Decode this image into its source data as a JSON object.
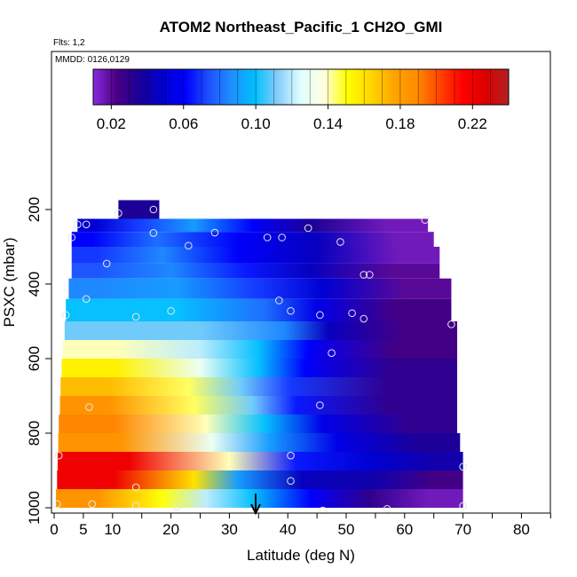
{
  "chart_data": {
    "type": "heatmap",
    "title": "ATOM2 Northeast_Pacific_1 CH2O_GMI",
    "flights_label": "Flts: 1,2",
    "dates_label": "MMDD: 0126,0129",
    "xlabel": "Latitude (deg N)",
    "ylabel": "PSXC (mbar)",
    "xlim": [
      0,
      85
    ],
    "ylim": [
      1000,
      100
    ],
    "x_ticks": [
      0,
      5,
      10,
      20,
      30,
      40,
      50,
      60,
      70,
      80
    ],
    "x_minor_ticks": [
      15,
      25,
      35,
      45,
      55,
      65,
      75,
      85
    ],
    "y_ticks": [
      200,
      400,
      600,
      800,
      1000
    ],
    "colorbar": {
      "min": 0.01,
      "max": 0.24,
      "tick_values": [
        0.02,
        0.06,
        0.1,
        0.14,
        0.18,
        0.22
      ],
      "tick_labels": [
        "0.02",
        "0.06",
        "0.10",
        "0.14",
        "0.18",
        "0.22"
      ],
      "colors": [
        "#8A2BE2",
        "#4B0082",
        "#1a0099",
        "#0000CD",
        "#0000FF",
        "#1E50FF",
        "#1E90FF",
        "#00BFFF",
        "#87CEFA",
        "#E0FFFF",
        "#FFFFE0",
        "#FFFF00",
        "#FFD700",
        "#FFA500",
        "#FF8C00",
        "#FF4500",
        "#FF0000",
        "#DC0000",
        "#B22222"
      ]
    },
    "arrow_latitude": 34.5,
    "rows": [
      {
        "p_top": 175,
        "p_bot": 225,
        "segments": [
          [
            11,
            18,
            0.035
          ]
        ]
      },
      {
        "p_top": 225,
        "p_bot": 260,
        "segments": [
          [
            4,
            10,
            0.05
          ],
          [
            10,
            18,
            0.07
          ],
          [
            18,
            30,
            0.09
          ],
          [
            30,
            38,
            0.06
          ],
          [
            38,
            50,
            0.035
          ],
          [
            50,
            64,
            0.015
          ]
        ]
      },
      {
        "p_top": 260,
        "p_bot": 300,
        "segments": [
          [
            3,
            10,
            0.06
          ],
          [
            10,
            25,
            0.08
          ],
          [
            25,
            38,
            0.06
          ],
          [
            38,
            52,
            0.045
          ],
          [
            52,
            65,
            0.015
          ]
        ]
      },
      {
        "p_top": 300,
        "p_bot": 345,
        "segments": [
          [
            3,
            12,
            0.07
          ],
          [
            12,
            25,
            0.085
          ],
          [
            25,
            38,
            0.06
          ],
          [
            38,
            52,
            0.045
          ],
          [
            52,
            66,
            0.015
          ]
        ]
      },
      {
        "p_top": 345,
        "p_bot": 385,
        "segments": [
          [
            3,
            12,
            0.075
          ],
          [
            12,
            28,
            0.085
          ],
          [
            28,
            38,
            0.065
          ],
          [
            38,
            50,
            0.045
          ],
          [
            50,
            66,
            0.02
          ]
        ]
      },
      {
        "p_top": 385,
        "p_bot": 440,
        "segments": [
          [
            2.5,
            12,
            0.085
          ],
          [
            12,
            30,
            0.09
          ],
          [
            30,
            40,
            0.07
          ],
          [
            40,
            52,
            0.05
          ],
          [
            52,
            68,
            0.02
          ]
        ]
      },
      {
        "p_top": 440,
        "p_bot": 500,
        "segments": [
          [
            2,
            12,
            0.1
          ],
          [
            12,
            30,
            0.1
          ],
          [
            30,
            42,
            0.08
          ],
          [
            42,
            48,
            0.055
          ],
          [
            48,
            68,
            0.025
          ]
        ]
      },
      {
        "p_top": 500,
        "p_bot": 550,
        "segments": [
          [
            1.8,
            15,
            0.11
          ],
          [
            15,
            35,
            0.11
          ],
          [
            35,
            44,
            0.085
          ],
          [
            44,
            50,
            0.045
          ],
          [
            50,
            69,
            0.025
          ]
        ]
      },
      {
        "p_top": 550,
        "p_bot": 600,
        "segments": [
          [
            1.5,
            20,
            0.14
          ],
          [
            20,
            30,
            0.12
          ],
          [
            30,
            40,
            0.1
          ],
          [
            40,
            47,
            0.06
          ],
          [
            47,
            69,
            0.025
          ]
        ]
      },
      {
        "p_top": 600,
        "p_bot": 650,
        "segments": [
          [
            1.3,
            20,
            0.155
          ],
          [
            20,
            30,
            0.13
          ],
          [
            30,
            40,
            0.1
          ],
          [
            40,
            46,
            0.06
          ],
          [
            46,
            69,
            0.03
          ]
        ]
      },
      {
        "p_top": 650,
        "p_bot": 700,
        "segments": [
          [
            1.1,
            18,
            0.17
          ],
          [
            18,
            28,
            0.145
          ],
          [
            28,
            36,
            0.11
          ],
          [
            36,
            45,
            0.07
          ],
          [
            45,
            69,
            0.03
          ]
        ]
      },
      {
        "p_top": 700,
        "p_bot": 750,
        "segments": [
          [
            1,
            18,
            0.185
          ],
          [
            18,
            30,
            0.145
          ],
          [
            30,
            38,
            0.11
          ],
          [
            38,
            45,
            0.065
          ],
          [
            45,
            69,
            0.03
          ]
        ]
      },
      {
        "p_top": 750,
        "p_bot": 800,
        "segments": [
          [
            0.8,
            20,
            0.19
          ],
          [
            20,
            32,
            0.14
          ],
          [
            32,
            40,
            0.1
          ],
          [
            40,
            52,
            0.055
          ],
          [
            52,
            69,
            0.03
          ]
        ]
      },
      {
        "p_top": 800,
        "p_bot": 850,
        "segments": [
          [
            0.7,
            22,
            0.185
          ],
          [
            22,
            32,
            0.13
          ],
          [
            32,
            42,
            0.09
          ],
          [
            42,
            55,
            0.055
          ],
          [
            55,
            69.5,
            0.035
          ]
        ]
      },
      {
        "p_top": 850,
        "p_bot": 900,
        "segments": [
          [
            0.6,
            25,
            0.22
          ],
          [
            25,
            35,
            0.14
          ],
          [
            35,
            48,
            0.065
          ],
          [
            48,
            60,
            0.05
          ],
          [
            60,
            70,
            0.04
          ]
        ]
      },
      {
        "p_top": 900,
        "p_bot": 950,
        "segments": [
          [
            0.5,
            20,
            0.22
          ],
          [
            20,
            28,
            0.16
          ],
          [
            28,
            35,
            0.09
          ],
          [
            35,
            50,
            0.045
          ],
          [
            50,
            60,
            0.04
          ],
          [
            60,
            70,
            0.025
          ]
        ]
      },
      {
        "p_top": 950,
        "p_bot": 1000,
        "segments": [
          [
            0.3,
            15,
            0.185
          ],
          [
            15,
            22,
            0.15
          ],
          [
            22,
            30,
            0.12
          ],
          [
            30,
            38,
            0.1
          ],
          [
            38,
            50,
            0.06
          ],
          [
            50,
            58,
            0.03
          ],
          [
            58,
            70,
            0.015
          ]
        ]
      }
    ],
    "points": [
      [
        11,
        210
      ],
      [
        17,
        200
      ],
      [
        4,
        240
      ],
      [
        5.5,
        240
      ],
      [
        17,
        263
      ],
      [
        23,
        297
      ],
      [
        27.5,
        262
      ],
      [
        36.5,
        275
      ],
      [
        39,
        275
      ],
      [
        43.5,
        250
      ],
      [
        49,
        287
      ],
      [
        63.5,
        228
      ],
      [
        3,
        275
      ],
      [
        9,
        345
      ],
      [
        53,
        375
      ],
      [
        54,
        375
      ],
      [
        5.5,
        440
      ],
      [
        38.5,
        444
      ],
      [
        40.5,
        472
      ],
      [
        2,
        483
      ],
      [
        14,
        488
      ],
      [
        20,
        472
      ],
      [
        45.5,
        483
      ],
      [
        51,
        478
      ],
      [
        53,
        493
      ],
      [
        68,
        508
      ],
      [
        47.5,
        585
      ],
      [
        45.5,
        725
      ],
      [
        6,
        730
      ],
      [
        0.8,
        860
      ],
      [
        40.5,
        860
      ],
      [
        70,
        890
      ],
      [
        40.5,
        928
      ],
      [
        14,
        945
      ],
      [
        0.5,
        990
      ],
      [
        6.5,
        990
      ],
      [
        14,
        994
      ],
      [
        21,
        998
      ],
      [
        46,
        1010
      ],
      [
        57,
        1003
      ],
      [
        70,
        995
      ]
    ]
  }
}
